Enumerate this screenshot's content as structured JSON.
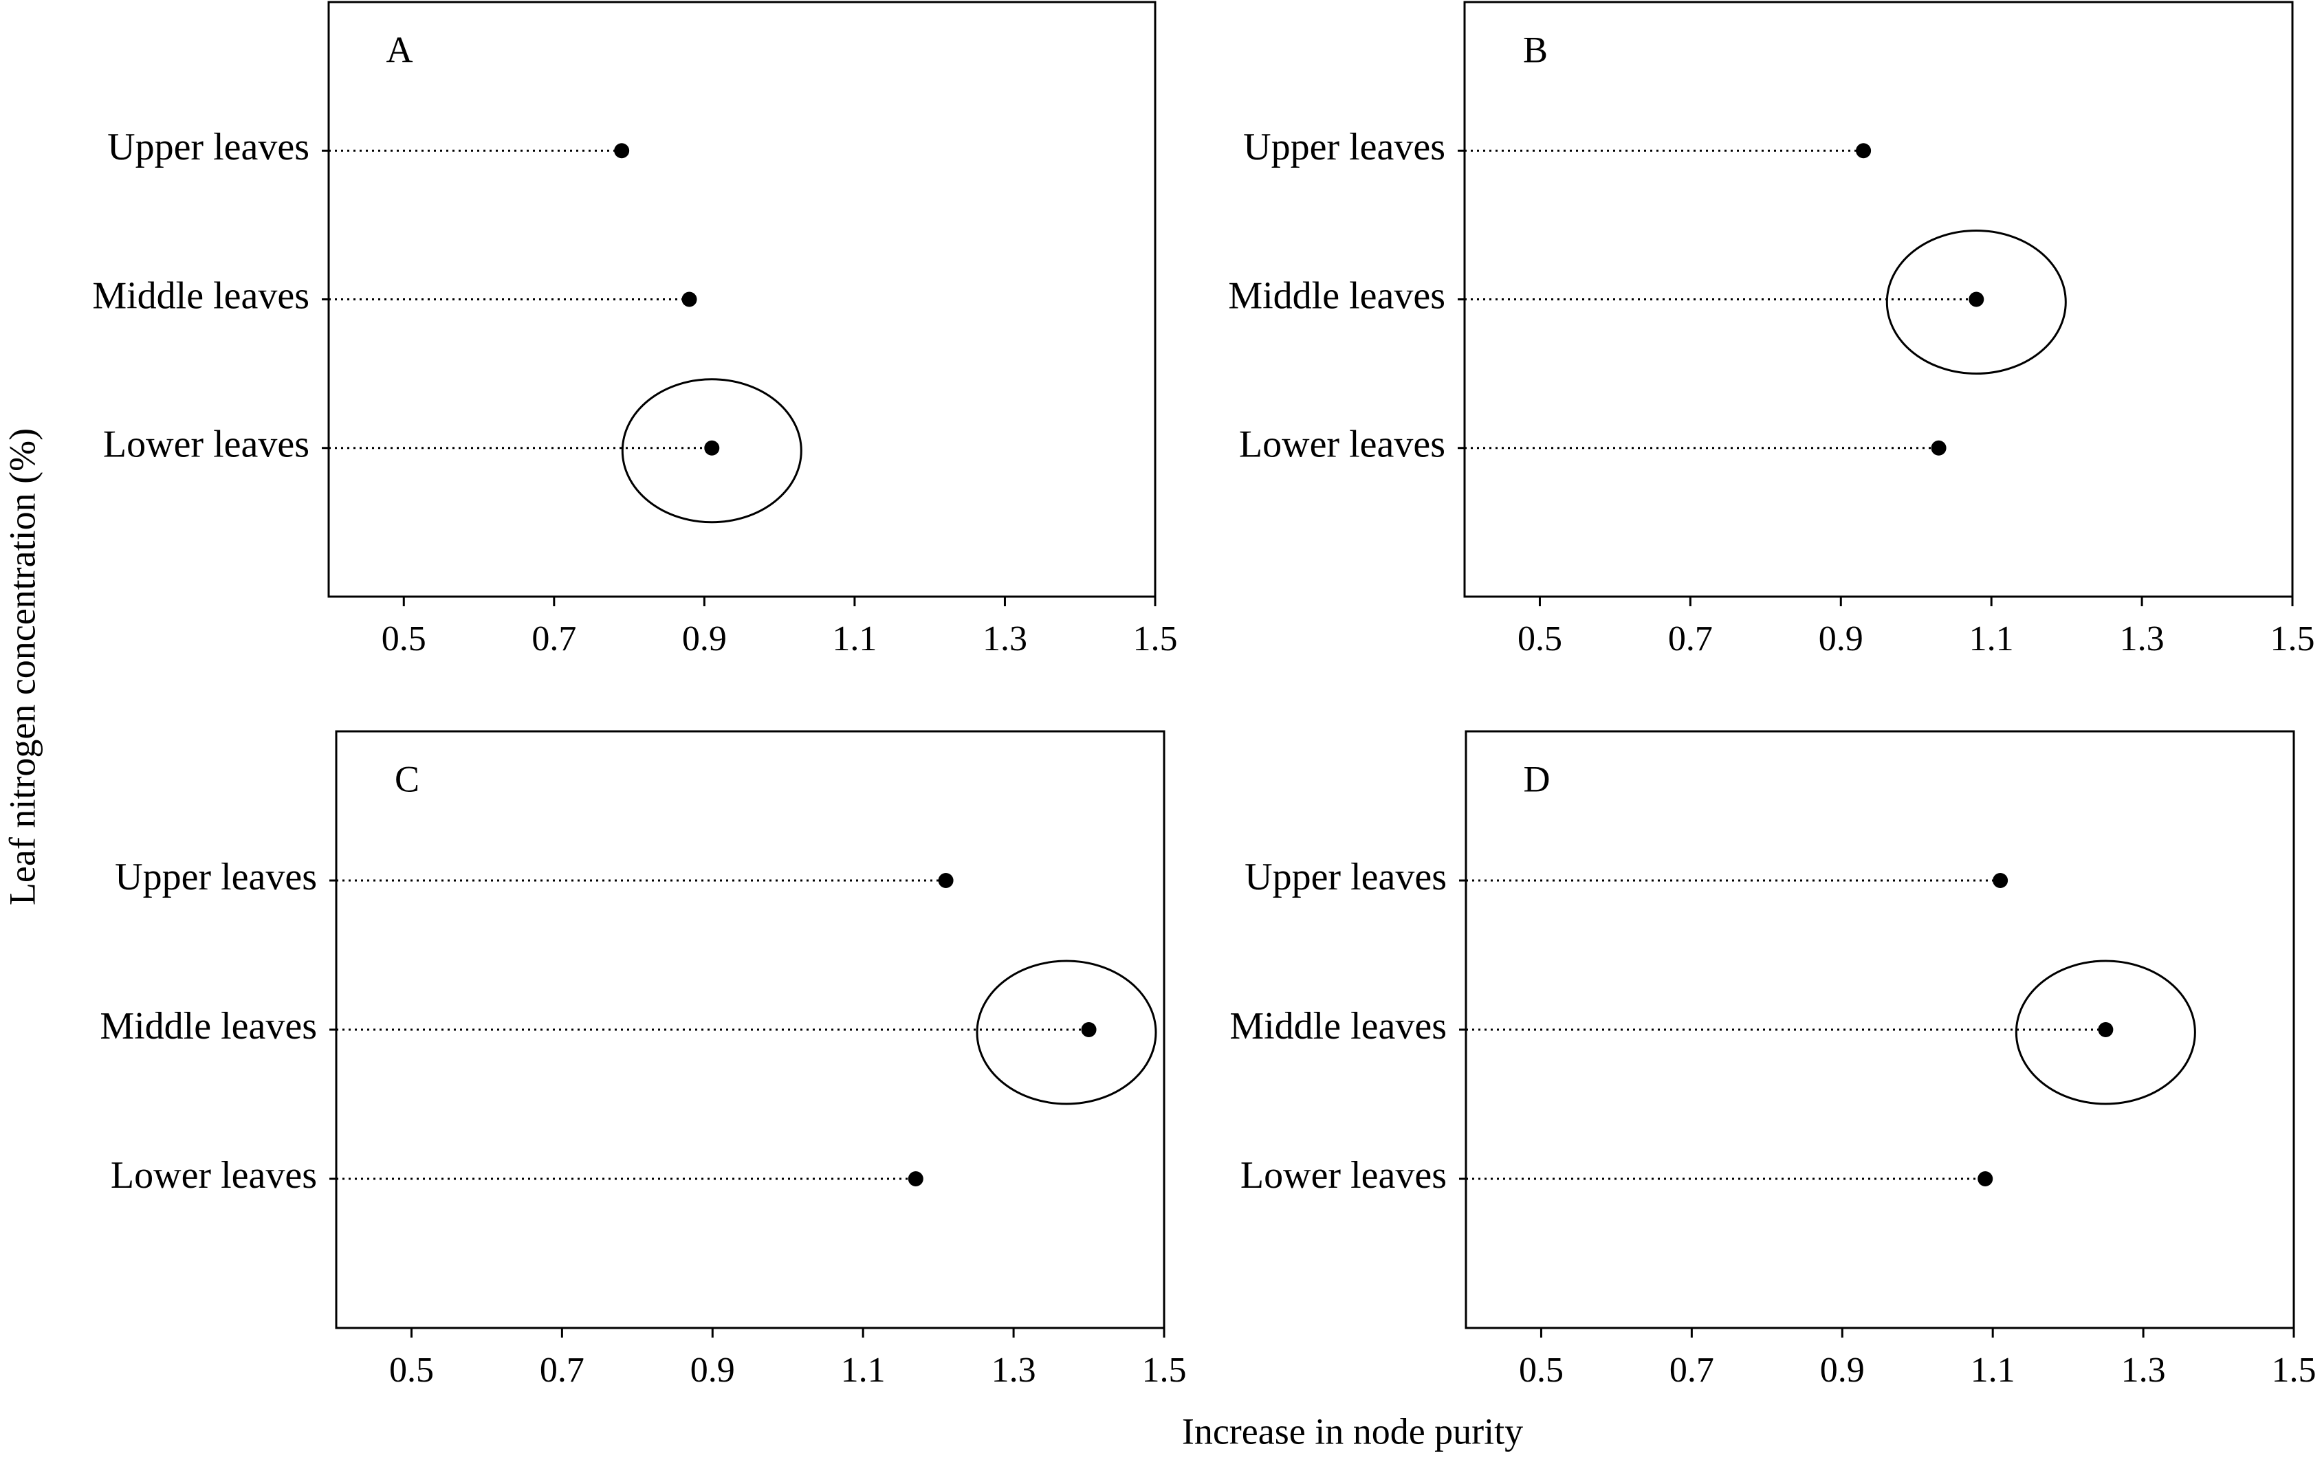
{
  "y_label": "Leaf nitrogen concentration (%)",
  "x_label": "Increase in node purity",
  "chart_data": [
    {
      "type": "dot",
      "label": "A",
      "categories": [
        "Upper leaves",
        "Middle leaves",
        "Lower leaves"
      ],
      "values": [
        0.79,
        0.88,
        0.91
      ],
      "color": "#000000",
      "xlim": [
        0.4,
        1.5
      ],
      "xticks": [
        0.5,
        0.7,
        0.9,
        1.1,
        1.3,
        1.5
      ]
    },
    {
      "type": "dot",
      "label": "B",
      "categories": [
        "Upper leaves",
        "Middle leaves",
        "Lower leaves"
      ],
      "values": [
        0.93,
        1.08,
        1.03
      ],
      "color": "#000000",
      "xlim": [
        0.4,
        1.5
      ],
      "xticks": [
        0.5,
        0.7,
        0.9,
        1.1,
        1.3,
        1.5
      ]
    },
    {
      "type": "dot",
      "label": "C",
      "categories": [
        "Upper leaves",
        "Middle leaves",
        "Lower leaves"
      ],
      "values": [
        1.21,
        1.4,
        1.17
      ],
      "color": "#000000",
      "xlim": [
        0.4,
        1.5
      ],
      "xticks": [
        0.5,
        0.7,
        0.9,
        1.1,
        1.3,
        1.5
      ]
    },
    {
      "type": "dot",
      "label": "D",
      "categories": [
        "Upper leaves",
        "Middle leaves",
        "Lower leaves"
      ],
      "values": [
        1.11,
        1.25,
        1.09
      ],
      "color": "#000000",
      "xlim": [
        0.4,
        1.5
      ],
      "xticks": [
        0.5,
        0.7,
        0.9,
        1.1,
        1.3,
        1.5
      ]
    }
  ]
}
